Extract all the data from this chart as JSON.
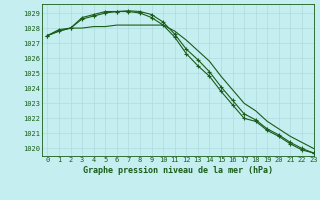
{
  "title": "Graphe pression niveau de la mer (hPa)",
  "background_color": "#c5eef0",
  "grid_color": "#b0dce0",
  "line_color": "#1a5c1a",
  "xlim": [
    -0.5,
    23
  ],
  "ylim": [
    1019.5,
    1029.6
  ],
  "yticks": [
    1020,
    1021,
    1022,
    1023,
    1024,
    1025,
    1026,
    1027,
    1028,
    1029
  ],
  "xticks": [
    0,
    1,
    2,
    3,
    4,
    5,
    6,
    7,
    8,
    9,
    10,
    11,
    12,
    13,
    14,
    15,
    16,
    17,
    18,
    19,
    20,
    21,
    22,
    23
  ],
  "series": [
    {
      "x": [
        0,
        1,
        2,
        3,
        4,
        5,
        6,
        7,
        8,
        9,
        10,
        11,
        12,
        13,
        14,
        15,
        16,
        17,
        18,
        19,
        20,
        21,
        22,
        23
      ],
      "y": [
        1027.5,
        1027.8,
        1028.0,
        1028.7,
        1028.9,
        1029.1,
        1029.1,
        1029.1,
        1029.0,
        1028.7,
        1028.2,
        1027.4,
        1026.3,
        1025.5,
        1024.8,
        1023.8,
        1022.9,
        1022.0,
        1021.8,
        1021.2,
        1020.8,
        1020.3,
        1019.9,
        1019.7
      ],
      "marker": true
    },
    {
      "x": [
        0,
        1,
        2,
        3,
        4,
        5,
        6,
        7,
        8,
        9,
        10,
        11,
        12,
        13,
        14,
        15,
        16,
        17,
        18,
        19,
        20,
        21,
        22,
        23
      ],
      "y": [
        1027.5,
        1027.8,
        1028.0,
        1028.0,
        1028.1,
        1028.1,
        1028.2,
        1028.2,
        1028.2,
        1028.2,
        1028.2,
        1027.8,
        1027.2,
        1026.5,
        1025.8,
        1024.8,
        1023.9,
        1023.0,
        1022.5,
        1021.8,
        1021.3,
        1020.8,
        1020.4,
        1020.0
      ],
      "marker": false
    },
    {
      "x": [
        0,
        1,
        2,
        3,
        4,
        5,
        6,
        7,
        8,
        9,
        10,
        11,
        12,
        13,
        14,
        15,
        16,
        17,
        18,
        19,
        20,
        21,
        22,
        23
      ],
      "y": [
        1027.5,
        1027.9,
        1028.0,
        1028.6,
        1028.8,
        1029.0,
        1029.1,
        1029.15,
        1029.1,
        1028.9,
        1028.4,
        1027.6,
        1026.6,
        1025.9,
        1025.1,
        1024.1,
        1023.2,
        1022.3,
        1021.9,
        1021.3,
        1020.9,
        1020.4,
        1020.0,
        1019.7
      ],
      "marker": true
    }
  ]
}
